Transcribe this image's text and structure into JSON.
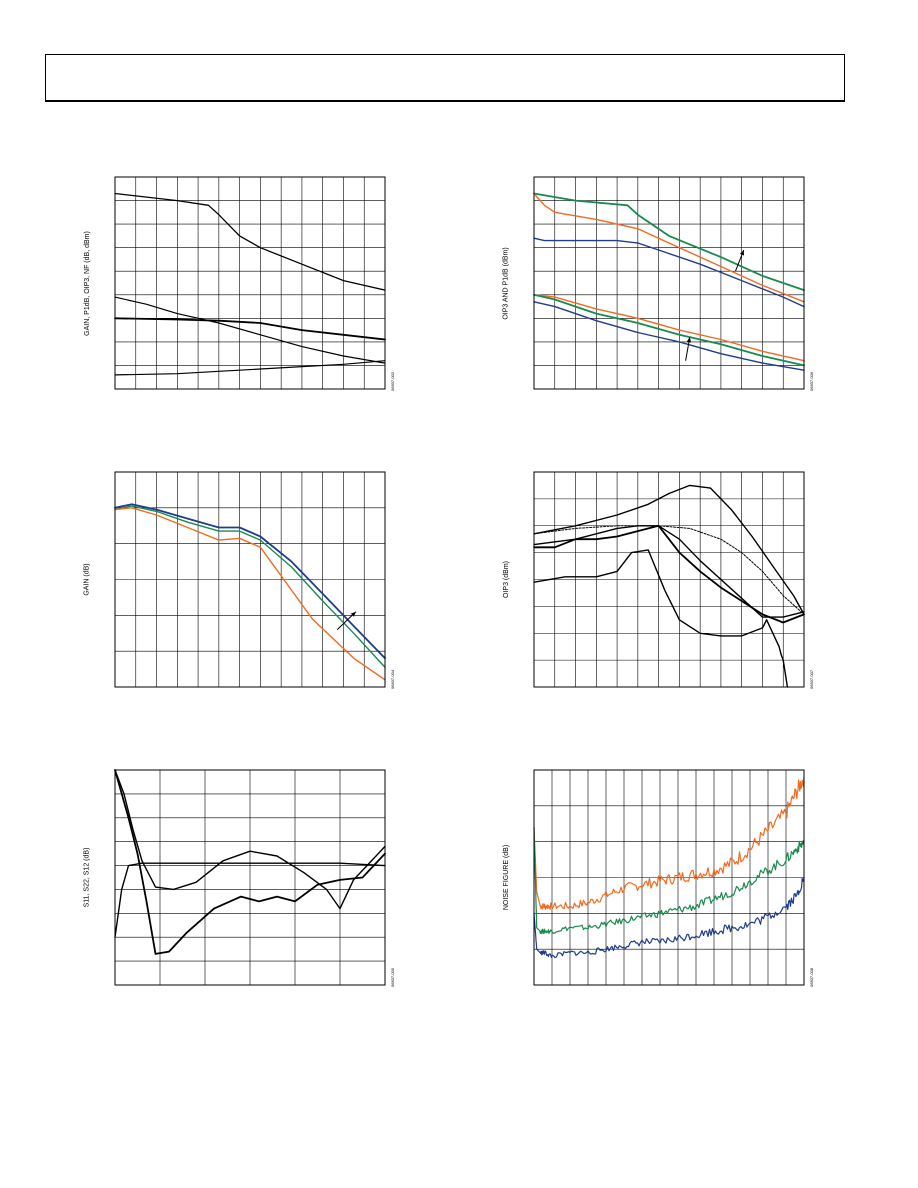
{
  "colors": {
    "black": "#000000",
    "orange": "#f26a21",
    "green": "#1a8a4e",
    "blue": "#1f3d8c",
    "grid": "#000000"
  },
  "chart_data": [
    {
      "type": "line",
      "ylabel": "GAIN, P1dB, OIP3, NF (dB, dBm)",
      "figure_id": "06837-002",
      "grid": true,
      "xdiv": 13,
      "ydiv": 9,
      "xlim": [
        0,
        13
      ],
      "ylim": [
        0,
        9
      ],
      "series": [
        {
          "color": "black",
          "width": 1.3,
          "x": [
            0,
            3,
            4.5,
            5,
            6,
            7,
            9,
            11,
            13
          ],
          "y": [
            8.3,
            8.0,
            7.8,
            7.4,
            6.5,
            6.0,
            5.3,
            4.6,
            4.2
          ]
        },
        {
          "color": "black",
          "width": 1.2,
          "x": [
            0,
            1.5,
            3,
            5,
            7,
            9,
            11,
            13
          ],
          "y": [
            3.9,
            3.6,
            3.2,
            2.8,
            2.3,
            1.8,
            1.4,
            1.1
          ]
        },
        {
          "color": "black",
          "width": 1.8,
          "x": [
            0,
            3,
            5,
            7,
            9,
            11,
            13
          ],
          "y": [
            3.0,
            2.95,
            2.9,
            2.8,
            2.5,
            2.3,
            2.1
          ]
        },
        {
          "color": "black",
          "width": 1.2,
          "x": [
            0,
            3,
            5,
            7,
            9,
            11,
            13
          ],
          "y": [
            0.6,
            0.65,
            0.75,
            0.85,
            0.95,
            1.05,
            1.2
          ]
        }
      ]
    },
    {
      "type": "line",
      "ylabel": "OIP3 AND P1dB (dBm)",
      "figure_id": "06837-006",
      "grid": true,
      "xdiv": 13,
      "ydiv": 9,
      "xlim": [
        0,
        13
      ],
      "ylim": [
        0,
        9
      ],
      "series": [
        {
          "color": "green",
          "width": 1.8,
          "x": [
            0,
            2,
            4.5,
            5,
            6.5,
            9,
            11,
            13
          ],
          "y": [
            8.3,
            8.0,
            7.8,
            7.4,
            6.5,
            5.6,
            4.8,
            4.2
          ]
        },
        {
          "color": "orange",
          "width": 1.4,
          "x": [
            0,
            0.5,
            1,
            3,
            5,
            7,
            9,
            11,
            13
          ],
          "y": [
            8.3,
            7.8,
            7.5,
            7.2,
            6.8,
            6.0,
            5.2,
            4.4,
            3.7
          ]
        },
        {
          "color": "blue",
          "width": 1.4,
          "x": [
            0,
            0.5,
            2,
            4,
            5,
            6,
            8,
            10,
            12,
            13
          ],
          "y": [
            6.4,
            6.3,
            6.3,
            6.3,
            6.2,
            5.9,
            5.3,
            4.6,
            3.9,
            3.5
          ]
        },
        {
          "color": "orange",
          "width": 1.4,
          "x": [
            0,
            1,
            3,
            5,
            7,
            9,
            11,
            13
          ],
          "y": [
            4.0,
            3.9,
            3.4,
            3.0,
            2.5,
            2.1,
            1.6,
            1.2
          ]
        },
        {
          "color": "green",
          "width": 1.8,
          "x": [
            0,
            1,
            3,
            5,
            7,
            9,
            11,
            13
          ],
          "y": [
            4.0,
            3.8,
            3.2,
            2.8,
            2.3,
            1.9,
            1.4,
            1.0
          ]
        },
        {
          "color": "blue",
          "width": 1.4,
          "x": [
            0,
            1,
            3,
            5,
            7,
            9,
            11,
            13
          ],
          "y": [
            3.7,
            3.5,
            2.9,
            2.4,
            2.0,
            1.5,
            1.1,
            0.8
          ]
        }
      ],
      "annotations": [
        {
          "x1": 9.7,
          "y1": 5.0,
          "x2": 10.1,
          "y2": 5.9
        },
        {
          "x1": 7.3,
          "y1": 1.2,
          "x2": 7.5,
          "y2": 2.2
        }
      ]
    },
    {
      "type": "line",
      "ylabel": "GAIN (dB)",
      "figure_id": "06837-004",
      "grid": true,
      "xdiv": 13,
      "ydiv": 6,
      "xlim": [
        0,
        13
      ],
      "ylim": [
        0,
        6
      ],
      "series": [
        {
          "color": "blue",
          "width": 1.8,
          "x": [
            0,
            0.8,
            2,
            3.5,
            5,
            6,
            7,
            8.5,
            10,
            11.5,
            13
          ],
          "y": [
            5.0,
            5.1,
            4.95,
            4.7,
            4.45,
            4.45,
            4.2,
            3.5,
            2.6,
            1.7,
            0.8
          ]
        },
        {
          "color": "green",
          "width": 1.4,
          "x": [
            0,
            0.8,
            2,
            3.5,
            5,
            6,
            7,
            8.5,
            10,
            11.5,
            13
          ],
          "y": [
            4.95,
            5.05,
            4.9,
            4.6,
            4.35,
            4.35,
            4.1,
            3.35,
            2.4,
            1.5,
            0.55
          ]
        },
        {
          "color": "orange",
          "width": 1.4,
          "x": [
            0,
            0.8,
            2,
            3.5,
            5,
            6,
            7,
            8,
            9.5,
            11.5,
            13
          ],
          "y": [
            4.95,
            5.0,
            4.8,
            4.45,
            4.1,
            4.15,
            3.9,
            3.1,
            1.9,
            0.8,
            0.2
          ]
        }
      ],
      "annotations": [
        {
          "x1": 10.7,
          "y1": 1.6,
          "x2": 11.6,
          "y2": 2.1
        }
      ]
    },
    {
      "type": "line",
      "ylabel": "OIP3 (dBm)",
      "figure_id": "06837-007",
      "grid": true,
      "xdiv": 13,
      "ydiv": 8,
      "xlim": [
        0,
        13
      ],
      "ylim": [
        0,
        8
      ],
      "series": [
        {
          "color": "black",
          "width": 1.4,
          "x": [
            0,
            2,
            4,
            5.5,
            6.5,
            7.5,
            8.5,
            9.5,
            10.5,
            11.5,
            12.5,
            13
          ],
          "y": [
            5.7,
            6.0,
            6.4,
            6.8,
            7.2,
            7.5,
            7.4,
            6.6,
            5.6,
            4.5,
            3.4,
            2.7
          ]
        },
        {
          "color": "black",
          "width": 1.0,
          "dash": "2,1.5",
          "x": [
            0,
            2,
            4,
            6,
            7.5,
            9,
            10,
            11,
            12,
            13
          ],
          "y": [
            5.7,
            5.9,
            6.0,
            6.0,
            5.9,
            5.5,
            5.0,
            4.3,
            3.4,
            2.7
          ]
        },
        {
          "color": "black",
          "width": 1.4,
          "x": [
            0,
            2,
            4,
            5,
            6,
            7,
            8,
            9,
            10,
            11,
            12,
            13
          ],
          "y": [
            5.3,
            5.5,
            5.9,
            6.0,
            6.0,
            5.5,
            4.7,
            4.0,
            3.3,
            2.6,
            2.6,
            2.8
          ]
        },
        {
          "color": "black",
          "width": 1.8,
          "x": [
            0,
            1,
            2,
            3,
            4,
            5,
            6,
            7,
            8,
            9,
            10,
            11,
            12,
            13
          ],
          "y": [
            5.2,
            5.2,
            5.5,
            5.5,
            5.6,
            5.8,
            6.0,
            5.0,
            4.3,
            3.7,
            3.2,
            2.7,
            2.4,
            2.7
          ]
        },
        {
          "color": "black",
          "width": 1.4,
          "x": [
            0,
            1.5,
            3,
            4,
            4.7,
            5.5,
            6.3,
            7,
            8,
            9,
            10,
            11,
            11.2,
            11.8,
            11.9,
            12,
            12.2
          ],
          "y": [
            3.9,
            4.1,
            4.1,
            4.3,
            5.0,
            5.1,
            3.6,
            2.5,
            2.0,
            1.9,
            1.9,
            2.2,
            2.5,
            1.5,
            1.2,
            1.0,
            0.0
          ]
        }
      ]
    },
    {
      "type": "line",
      "ylabel": "S11, S22, S12 (dB)",
      "figure_id": "06837-005",
      "grid": true,
      "xdiv": 6,
      "ydiv": 9,
      "xlim": [
        0,
        6
      ],
      "ylim": [
        0,
        9
      ],
      "series": [
        {
          "color": "black",
          "width": 1.8,
          "x": [
            0,
            0.3,
            0.5,
            0.7,
            0.9,
            1.2,
            1.6,
            2.2,
            2.8,
            3.2,
            3.6,
            4,
            4.5,
            5,
            5.5,
            6
          ],
          "y": [
            9,
            7,
            5.5,
            3.5,
            1.3,
            1.4,
            2.2,
            3.2,
            3.7,
            3.5,
            3.7,
            3.5,
            4.2,
            4.4,
            4.5,
            5.5
          ]
        },
        {
          "color": "black",
          "width": 1.4,
          "x": [
            0,
            0.2,
            0.4,
            0.6,
            0.9,
            1.3,
            1.8,
            2.4,
            3.0,
            3.6,
            4.2,
            4.7,
            5.0,
            5.3,
            5.6,
            6
          ],
          "y": [
            9,
            8,
            6.5,
            5.2,
            4.1,
            4.0,
            4.3,
            5.2,
            5.6,
            5.4,
            4.7,
            4.0,
            3.2,
            4.4,
            5.0,
            5.8
          ]
        },
        {
          "color": "black",
          "width": 1.4,
          "x": [
            0,
            0.15,
            0.3,
            0.6,
            1.2,
            2,
            3,
            4,
            5,
            6
          ],
          "y": [
            2.0,
            4.0,
            5.0,
            5.1,
            5.1,
            5.1,
            5.1,
            5.1,
            5.1,
            5.0
          ]
        }
      ]
    },
    {
      "type": "line",
      "ylabel": "NOISE FIGURE (dB)",
      "figure_id": "06837-008",
      "grid": true,
      "xdiv": 15,
      "ydiv": 6,
      "xlim": [
        0,
        15
      ],
      "ylim": [
        0,
        6
      ],
      "series": [
        {
          "color": "orange",
          "width": 1.2,
          "noise": 0.09,
          "x": [
            0,
            0.15,
            0.35,
            0.6,
            1,
            2,
            3,
            4,
            5,
            6,
            7,
            8,
            9,
            10,
            11,
            12,
            13,
            14,
            14.6,
            15
          ],
          "y": [
            4.4,
            2.6,
            2.2,
            2.2,
            2.2,
            2.2,
            2.3,
            2.5,
            2.7,
            2.8,
            2.9,
            3.0,
            3.1,
            3.2,
            3.4,
            3.8,
            4.3,
            4.8,
            5.4,
            5.8
          ]
        },
        {
          "color": "green",
          "width": 1.2,
          "noise": 0.06,
          "x": [
            0,
            0.15,
            0.35,
            0.6,
            1,
            2,
            3,
            4,
            5,
            6,
            7,
            8,
            9,
            10,
            11,
            12,
            13,
            14,
            14.6,
            15
          ],
          "y": [
            4.4,
            1.6,
            1.5,
            1.5,
            1.5,
            1.6,
            1.6,
            1.7,
            1.8,
            1.9,
            2.0,
            2.1,
            2.2,
            2.4,
            2.6,
            2.9,
            3.2,
            3.5,
            3.8,
            4.0
          ]
        },
        {
          "color": "blue",
          "width": 1.2,
          "noise": 0.06,
          "x": [
            0,
            0.15,
            0.35,
            0.6,
            1,
            2,
            3,
            4,
            5,
            6,
            7,
            8,
            9,
            10,
            11,
            12,
            13,
            14,
            14.6,
            15
          ],
          "y": [
            2.0,
            1.0,
            0.9,
            0.9,
            0.8,
            0.9,
            0.9,
            1.0,
            1.1,
            1.2,
            1.2,
            1.3,
            1.4,
            1.5,
            1.6,
            1.7,
            1.9,
            2.2,
            2.5,
            3.0
          ]
        }
      ]
    }
  ]
}
